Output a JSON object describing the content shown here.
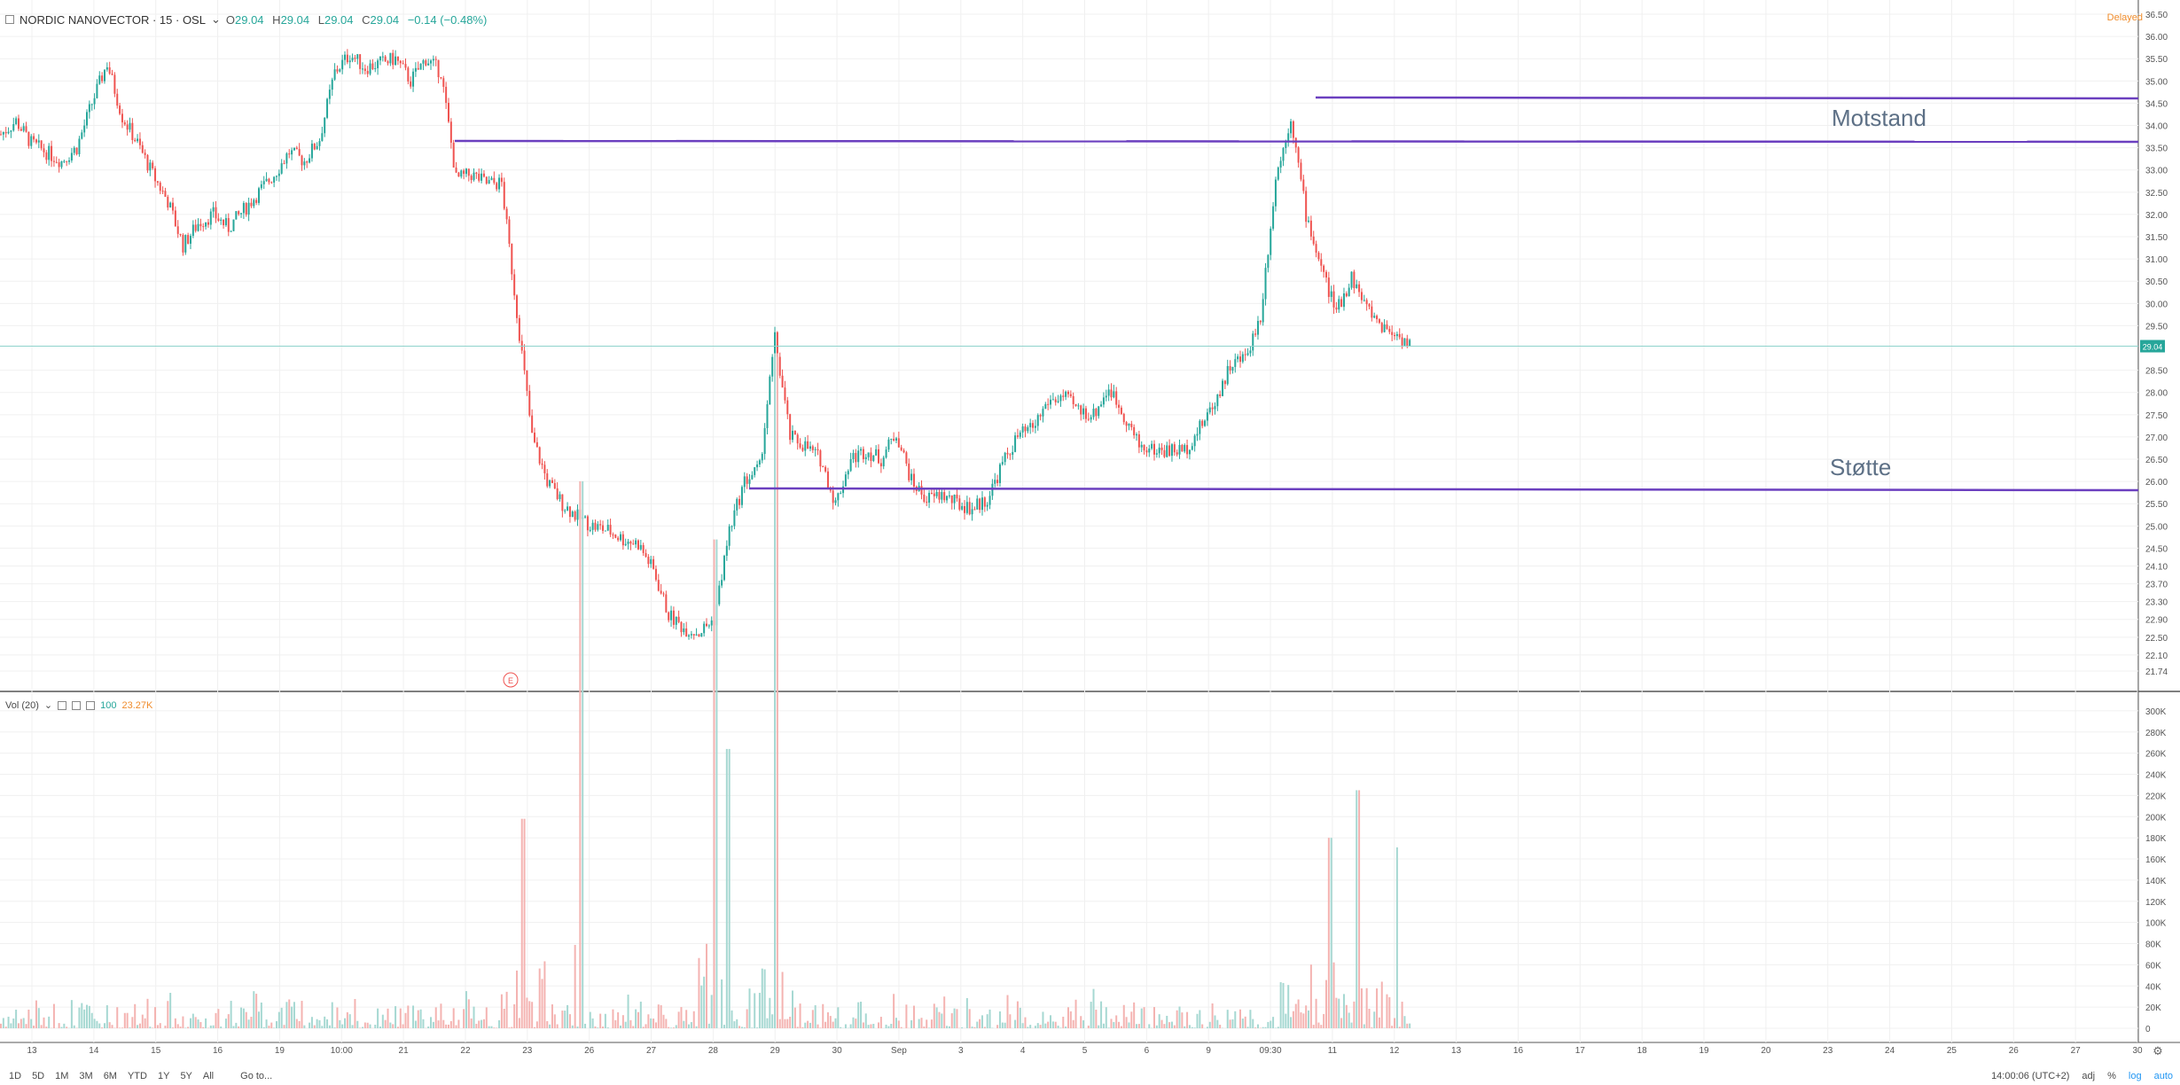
{
  "header": {
    "symbol": "NORDIC NANOVECTOR · 15 · OSL",
    "open_label": "O",
    "open": "29.04",
    "high_label": "H",
    "high": "29.04",
    "low_label": "L",
    "low": "29.04",
    "close_label": "C",
    "close": "29.04",
    "change": "−0.14 (−0.48%)",
    "delayed": "Delayed"
  },
  "volume": {
    "label": "Vol (20)",
    "v1": "100",
    "v2": "23.27K"
  },
  "annotations": {
    "resistance": "Motstand",
    "support": "Støtte"
  },
  "earnings_marker": "E",
  "price_label": "29.04",
  "colors": {
    "up": "#26a69a",
    "down": "#ef5350",
    "line": "#6b3fbf",
    "vol_up": "#a6d8d2",
    "vol_down": "#f4b3b1"
  },
  "price_axis_ticks": [
    "36.50",
    "36.00",
    "35.50",
    "35.00",
    "34.50",
    "34.00",
    "33.50",
    "33.00",
    "32.50",
    "32.00",
    "31.50",
    "31.00",
    "30.50",
    "30.00",
    "29.50",
    "28.50",
    "28.00",
    "27.50",
    "27.00",
    "26.50",
    "26.00",
    "25.50",
    "25.00",
    "24.50",
    "24.10",
    "23.70",
    "23.30",
    "22.90",
    "22.50",
    "22.10",
    "21.74"
  ],
  "volume_axis_ticks": [
    "300K",
    "280K",
    "260K",
    "240K",
    "220K",
    "200K",
    "180K",
    "160K",
    "140K",
    "120K",
    "100K",
    "80K",
    "60K",
    "40K",
    "20K",
    "0"
  ],
  "time_ticks": [
    "13",
    "14",
    "15",
    "16",
    "19",
    "10:00",
    "21",
    "22",
    "23",
    "26",
    "27",
    "28",
    "29",
    "30",
    "Sep",
    "3",
    "4",
    "5",
    "6",
    "9",
    "09:30",
    "11",
    "12",
    "13",
    "16",
    "17",
    "18",
    "19",
    "20",
    "23",
    "24",
    "25",
    "26",
    "27",
    "30"
  ],
  "ranges": [
    "1D",
    "5D",
    "1M",
    "3M",
    "6M",
    "YTD",
    "1Y",
    "5Y",
    "All",
    "Go to..."
  ],
  "footer_right": [
    "14:00:06 (UTC+2)",
    "adj",
    "%",
    "log",
    "auto"
  ],
  "chart_data": {
    "type": "line",
    "series": [
      {
        "values": [
          33.8,
          34.1,
          33.6,
          33.4,
          33.2,
          33.5,
          34.5,
          35.4,
          34.2,
          33.6,
          32.9,
          32.3,
          31.3,
          31.8,
          32.0,
          31.7,
          32.1,
          32.5,
          32.9,
          33.4,
          33.2,
          33.7,
          35.2,
          35.6,
          35.3,
          35.4,
          35.5,
          35.0,
          35.5,
          35.2,
          32.8,
          32.9,
          32.7,
          32.7,
          29.8,
          27.0,
          26.0,
          25.5,
          25.2,
          25.0,
          24.9,
          24.7,
          24.6,
          24.0,
          23.0,
          22.7,
          22.6,
          22.9,
          24.9,
          26.0,
          26.3,
          29.2,
          27.0,
          26.8,
          26.5,
          25.5,
          26.5,
          26.7,
          26.5,
          27.1,
          26.0,
          25.6,
          25.7,
          25.5,
          25.4,
          25.6,
          26.4,
          27.0,
          27.2,
          27.8,
          27.9,
          27.6,
          27.5,
          28.1,
          27.5,
          26.8,
          26.7,
          26.7,
          26.7,
          27.2,
          27.8,
          28.6,
          28.8,
          29.7,
          32.8,
          34.2,
          32.0,
          30.8,
          29.8,
          30.6,
          29.9,
          29.5,
          29.3,
          29.04
        ]
      }
    ]
  }
}
